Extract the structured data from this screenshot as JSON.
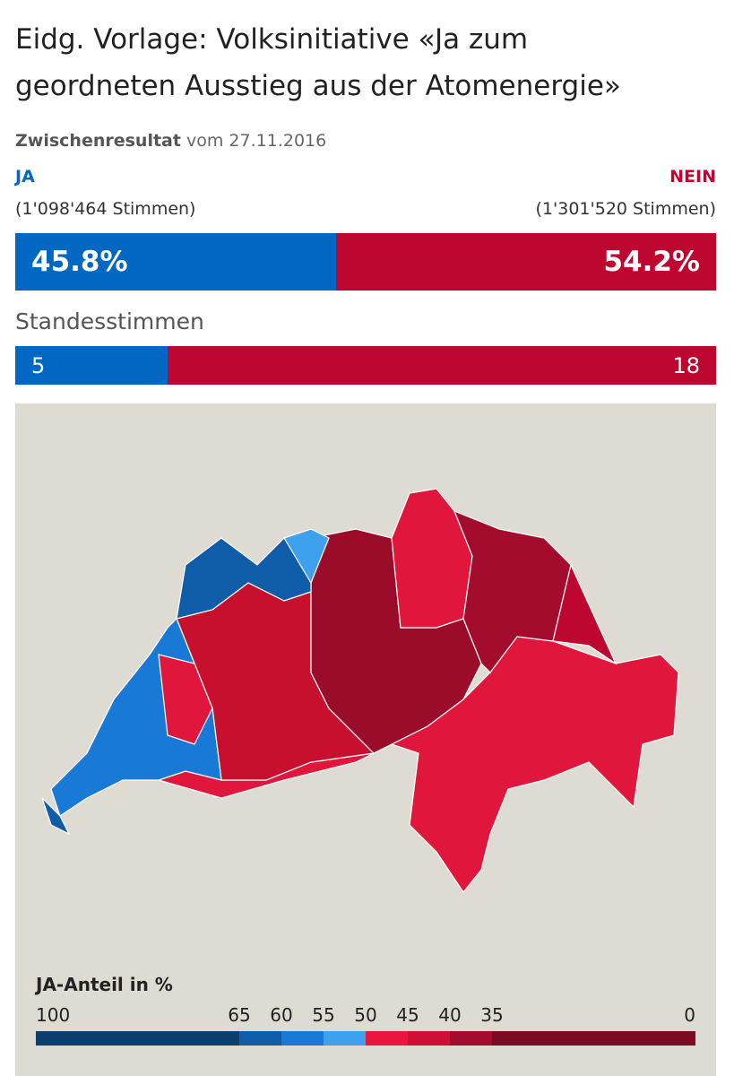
{
  "header": {
    "title": "Eidg. Vorlage: Volksinitiative «Ja zum geordneten Ausstieg aus der Atomenergie»",
    "status": "Zwischenresultat",
    "date": "vom 27.11.2016"
  },
  "result": {
    "yes_label": "JA",
    "no_label": "NEIN",
    "yes_votes": "(1'098'464 Stimmen)",
    "no_votes": "(1'301'520 Stimmen)",
    "yes_percent": 45.8,
    "yes_percent_label": "45.8%",
    "no_percent": 54.2,
    "no_percent_label": "54.2%",
    "yes_color": "#0067c2",
    "no_color": "#bd0731"
  },
  "cantons": {
    "title": "Standesstimmen",
    "yes": 5,
    "no": 18
  },
  "legend": {
    "title": "JA-Anteil in %",
    "ticks": [
      100,
      65,
      60,
      55,
      50,
      45,
      40,
      35,
      0
    ],
    "colors": [
      "#0c3f6e",
      "#0f5da8",
      "#1879d6",
      "#3ea1ee",
      "#e8163f",
      "#cf1035",
      "#a30c2d",
      "#7c0a22"
    ]
  }
}
